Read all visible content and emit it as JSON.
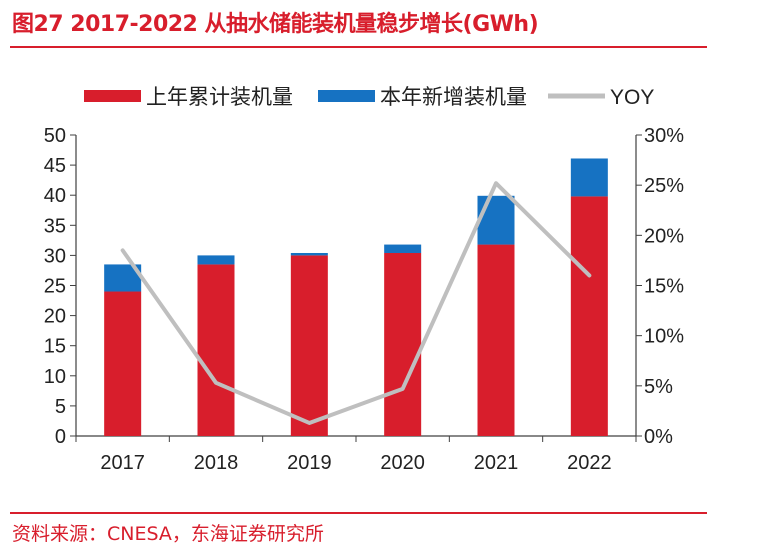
{
  "title": "图27  2017-2022 从抽水储能装机量稳步增长(GWh)",
  "source": "资料来源：CNESA，东海证券研究所",
  "colors": {
    "base": "#d81e2c",
    "increment": "#1672c2",
    "yoy": "#bfbfbf",
    "accent": "#d81e2c"
  },
  "chart_data": {
    "type": "bar",
    "stacked": true,
    "title": "2017-2022 从抽水储能装机量稳步增长(GWh)",
    "categories": [
      "2017",
      "2018",
      "2019",
      "2020",
      "2021",
      "2022"
    ],
    "series": [
      {
        "name": "上年累计装机量",
        "type": "bar",
        "axis": "left",
        "color": "#d81e2c",
        "values": [
          24.0,
          28.5,
          30.0,
          30.4,
          31.8,
          39.8
        ]
      },
      {
        "name": "本年新增装机量",
        "type": "bar",
        "axis": "left",
        "color": "#1672c2",
        "values": [
          4.5,
          1.5,
          0.4,
          1.4,
          8.1,
          6.3
        ]
      },
      {
        "name": "YOY",
        "type": "line",
        "axis": "right",
        "color": "#bfbfbf",
        "values": [
          18.5,
          5.3,
          1.3,
          4.7,
          25.2,
          16.0
        ]
      }
    ],
    "left_axis": {
      "min": 0,
      "max": 50,
      "step": 5,
      "ticks": [
        "0",
        "5",
        "10",
        "15",
        "20",
        "25",
        "30",
        "35",
        "40",
        "45",
        "50"
      ]
    },
    "right_axis": {
      "min": 0,
      "max": 30,
      "step": 5,
      "ticks": [
        "0%",
        "5%",
        "10%",
        "15%",
        "20%",
        "25%",
        "30%"
      ]
    },
    "legend_position": "top",
    "grid": false
  }
}
